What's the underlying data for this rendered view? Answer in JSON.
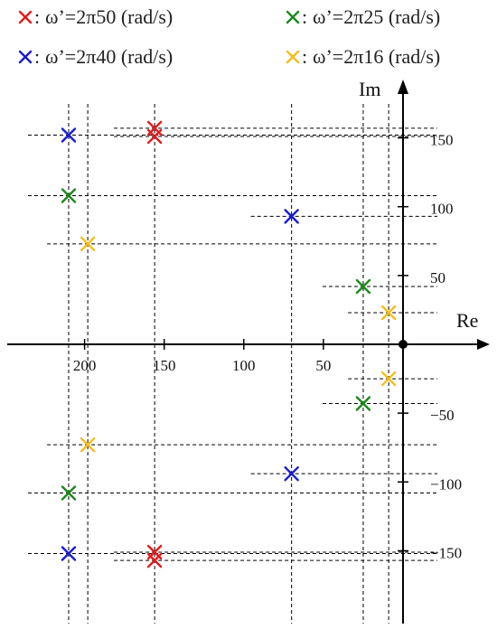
{
  "chart_data": {
    "type": "scatter",
    "xlabel": "Re",
    "ylabel": "Im",
    "xlim": [
      -240,
      10
    ],
    "ylim": [
      -175,
      175
    ],
    "x_ticks": [
      -200,
      -150,
      -100,
      -50
    ],
    "x_tick_labels": [
      "200",
      "150",
      "100",
      "50"
    ],
    "y_ticks": [
      150,
      100,
      50,
      -50,
      -100,
      -150
    ],
    "y_tick_labels": [
      "150",
      "100",
      "50",
      "−50",
      "−100",
      "−150"
    ],
    "origin_marker": true,
    "legend_position": "top",
    "series": [
      {
        "name": "ω’=2π50 (rad/s)",
        "color": "#e8191b",
        "points": [
          {
            "x": -156,
            "y": 157
          },
          {
            "x": -156,
            "y": 151
          },
          {
            "x": -156,
            "y": -151
          },
          {
            "x": -156,
            "y": -157
          }
        ]
      },
      {
        "name": "ω’=2π25 (rad/s)",
        "color": "#1b8a1b",
        "points": [
          {
            "x": -210,
            "y": 108
          },
          {
            "x": -210,
            "y": -108
          },
          {
            "x": -25,
            "y": 42
          },
          {
            "x": -25,
            "y": -43
          }
        ]
      },
      {
        "name": "ω’=2π40 (rad/s)",
        "color": "#1a1ad6",
        "points": [
          {
            "x": -210,
            "y": 152
          },
          {
            "x": -210,
            "y": -152
          },
          {
            "x": -70,
            "y": 93
          },
          {
            "x": -70,
            "y": -94
          }
        ]
      },
      {
        "name": "ω’=2π16 (rad/s)",
        "color": "#f5bd1a",
        "points": [
          {
            "x": -198,
            "y": 73
          },
          {
            "x": -198,
            "y": -73
          },
          {
            "x": -9,
            "y": 23
          },
          {
            "x": -9,
            "y": -25
          }
        ]
      }
    ]
  },
  "legend": {
    "marker": "x",
    "separator": ":",
    "items": [
      {
        "label": "ω’=2π50 (rad/s)",
        "color": "#e8191b"
      },
      {
        "label": "ω’=2π25 (rad/s)",
        "color": "#1b8a1b"
      },
      {
        "label": "ω’=2π40 (rad/s)",
        "color": "#1a1ad6"
      },
      {
        "label": "ω’=2π16 (rad/s)",
        "color": "#f5bd1a"
      }
    ]
  }
}
